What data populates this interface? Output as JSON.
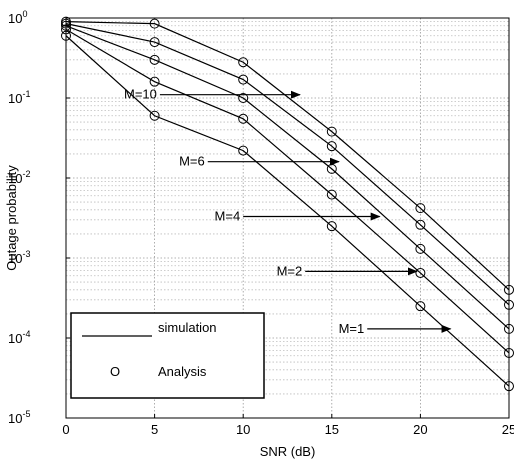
{
  "chart_data": {
    "type": "line",
    "title": "",
    "xlabel": "SNR (dB)",
    "ylabel": "Outage probability",
    "x": [
      0,
      5,
      10,
      15,
      20,
      25
    ],
    "xlim": [
      0,
      25
    ],
    "ylim": [
      1e-05,
      1
    ],
    "yscale": "log",
    "grid": true,
    "xticks": [
      "0",
      "5",
      "10",
      "15",
      "20",
      "25"
    ],
    "yticks": [
      {
        "value": 1,
        "base": "10",
        "exp": "0"
      },
      {
        "value": 0.1,
        "base": "10",
        "exp": "-1"
      },
      {
        "value": 0.01,
        "base": "10",
        "exp": "-2"
      },
      {
        "value": 0.001,
        "base": "10",
        "exp": "-3"
      },
      {
        "value": 0.0001,
        "base": "10",
        "exp": "-4"
      },
      {
        "value": 1e-05,
        "base": "10",
        "exp": "-5"
      }
    ],
    "series": [
      {
        "name": "M=10",
        "values": [
          0.9,
          0.85,
          0.28,
          0.038,
          0.0042,
          0.0004
        ],
        "arrow_from": [
          5.3,
          0.11
        ],
        "arrow_to": [
          13.2,
          0.11
        ]
      },
      {
        "name": "M=6",
        "values": [
          0.85,
          0.5,
          0.17,
          0.025,
          0.0026,
          0.00026
        ],
        "arrow_from": [
          8.0,
          0.016
        ],
        "arrow_to": [
          15.4,
          0.016
        ]
      },
      {
        "name": "M=4",
        "values": [
          0.8,
          0.3,
          0.1,
          0.013,
          0.0013,
          0.00013
        ],
        "arrow_from": [
          10.0,
          0.0033
        ],
        "arrow_to": [
          17.7,
          0.0033
        ]
      },
      {
        "name": "M=2",
        "values": [
          0.72,
          0.16,
          0.055,
          0.0062,
          0.00065,
          6.5e-05
        ],
        "arrow_from": [
          13.5,
          0.00068
        ],
        "arrow_to": [
          19.8,
          0.00068
        ]
      },
      {
        "name": "M=1",
        "values": [
          0.6,
          0.06,
          0.022,
          0.0025,
          0.00025,
          2.5e-05
        ],
        "arrow_from": [
          17.0,
          0.00013
        ],
        "arrow_to": [
          21.7,
          0.00013
        ]
      }
    ],
    "legend": {
      "position": "bottom-left",
      "items": [
        {
          "marker": "line",
          "label": "simulation"
        },
        {
          "symbol": "O",
          "label": "Analysis"
        }
      ]
    }
  }
}
